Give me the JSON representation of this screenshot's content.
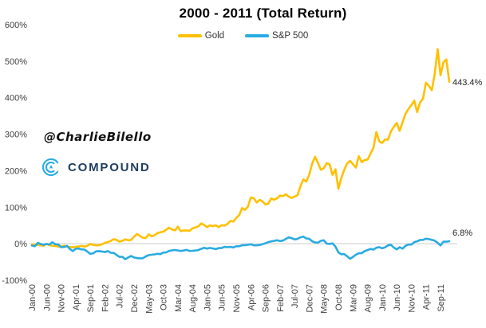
{
  "title": "2000 - 2011 (Total Return)",
  "watermark": "@CharlieBilello",
  "logo": {
    "text": "COMPOUND",
    "icon": "compound-c-arcs-icon"
  },
  "colors": {
    "gold": "#FFC000",
    "sp500": "#29ABE2",
    "axis_text": "#404040",
    "gridline": "#C9C9C9",
    "logo_text": "#1e3c5e",
    "logo_icon": "#29ABE2",
    "title_text": "#000000"
  },
  "chart_data": {
    "type": "line",
    "title": "2000 - 2011 (Total Return)",
    "x_unit": "month",
    "x_start": "Jan-00",
    "x_end": "Dec-11",
    "xtick_month_interval": 5,
    "xticks": [
      "Jan-00",
      "Jun-00",
      "Nov-00",
      "Apr-01",
      "Sep-01",
      "Feb-02",
      "Jul-02",
      "Dec-02",
      "May-03",
      "Oct-03",
      "Mar-04",
      "Aug-04",
      "Jan-05",
      "Jun-05",
      "Nov-05",
      "Apr-06",
      "Sep-06",
      "Feb-07",
      "Jul-07",
      "Dec-07",
      "May-08",
      "Oct-08",
      "Mar-09",
      "Aug-09",
      "Jan-10",
      "Jun-10",
      "Nov-10",
      "Apr-11",
      "Sep-11"
    ],
    "yticks": [
      "600%",
      "500%",
      "400%",
      "300%",
      "200%",
      "100%",
      "0%",
      "-100%"
    ],
    "ylim": [
      -100,
      600
    ],
    "gridlines": "horizontal line at 0% only",
    "legend_position": "top-center",
    "series": [
      {
        "name": "Gold",
        "color": "#FFC000",
        "end_label": "443.4%",
        "values": [
          -2.5,
          -1.8,
          -3.5,
          -4.5,
          -5.5,
          -0.5,
          -4.0,
          -5.5,
          -6.0,
          -8.0,
          -7.5,
          -5.3,
          -8.5,
          -9.0,
          -10.0,
          -8.5,
          -7.5,
          -6.0,
          -8.0,
          -5.5,
          -0.5,
          -3.5,
          -4.5,
          -4.0,
          -1.5,
          2.5,
          4.5,
          7.5,
          12.5,
          10.5,
          5.5,
          8.0,
          12.0,
          9.5,
          10.5,
          19.0,
          27.0,
          21.5,
          16.5,
          15.5,
          25.5,
          20.5,
          23.0,
          29.0,
          31.5,
          33.0,
          38.5,
          44.0,
          39.0,
          36.5,
          46.5,
          34.5,
          36.5,
          36.0,
          35.5,
          42.0,
          44.5,
          47.5,
          55.5,
          51.5,
          45.5,
          50.5,
          48.0,
          50.5,
          45.5,
          51.0,
          49.5,
          54.0,
          62.5,
          60.5,
          71.0,
          78.0,
          97.5,
          92.5,
          101.5,
          126.5,
          125.0,
          113.0,
          120.0,
          116.0,
          107.5,
          109.5,
          124.0,
          120.5,
          124.5,
          132.0,
          130.5,
          135.0,
          129.0,
          125.5,
          129.5,
          133.0,
          157.5,
          176.0,
          170.5,
          188.5,
          219.0,
          238.0,
          221.5,
          202.5,
          207.0,
          220.5,
          217.5,
          188.5,
          204.0,
          150.5,
          180.0,
          202.5,
          220.0,
          227.0,
          218.0,
          208.5,
          240.0,
          223.5,
          229.0,
          230.5,
          247.0,
          262.0,
          306.0,
          280.5,
          276.0,
          285.5,
          285.0,
          308.0,
          320.5,
          331.0,
          309.0,
          333.0,
          355.5,
          369.0,
          379.5,
          392.0,
          360.5,
          387.0,
          397.5,
          441.0,
          432.0,
          420.5,
          464.0,
          533.0,
          461.5,
          497.0,
          505.0,
          443.4
        ]
      },
      {
        "name": "S&P 500",
        "color": "#29ABE2",
        "end_label": "6.8%",
        "values": [
          -5.0,
          -6.8,
          2.3,
          -0.8,
          -2.9,
          -0.5,
          -2.0,
          4.1,
          -1.5,
          -1.9,
          -9.6,
          -9.1,
          -5.9,
          -14.5,
          -20.0,
          -13.8,
          -13.2,
          -15.3,
          -16.1,
          -21.4,
          -27.8,
          -26.4,
          -20.8,
          -20.1,
          -21.3,
          -22.8,
          -19.9,
          -24.8,
          -25.3,
          -30.6,
          -36.0,
          -35.6,
          -42.6,
          -37.5,
          -33.8,
          -37.7,
          -39.3,
          -40.2,
          -39.6,
          -34.7,
          -31.2,
          -30.3,
          -29.1,
          -27.7,
          -28.5,
          -24.4,
          -23.7,
          -19.7,
          -18.3,
          -17.2,
          -18.4,
          -19.7,
          -18.6,
          -17.0,
          -19.8,
          -19.4,
          -18.6,
          -17.3,
          -14.0,
          -11.1,
          -13.3,
          -11.4,
          -13.0,
          -14.7,
          -11.9,
          -11.8,
          -8.6,
          -9.4,
          -8.7,
          -10.2,
          -6.8,
          -6.8,
          -4.3,
          -4.1,
          -2.9,
          -1.6,
          -4.4,
          -4.3,
          -3.7,
          -1.4,
          1.1,
          4.4,
          6.4,
          7.9,
          9.5,
          7.3,
          8.5,
          13.3,
          17.3,
          15.3,
          11.7,
          13.4,
          17.6,
          19.5,
          14.5,
          13.7,
          6.9,
          3.5,
          3.0,
          8.0,
          9.5,
          0.3,
          -0.5,
          0.9,
          -8.1,
          -23.5,
          -29.0,
          -28.2,
          -34.3,
          -41.3,
          -36.1,
          -30.0,
          -26.1,
          -25.9,
          -20.3,
          -17.4,
          -14.4,
          -16.0,
          -11.0,
          -9.3,
          -12.6,
          -9.9,
          -4.5,
          -3.0,
          -10.7,
          -15.4,
          -9.4,
          -13.5,
          -5.8,
          -2.2,
          -2.2,
          4.3,
          6.8,
          10.4,
          10.5,
          13.8,
          12.5,
          10.6,
          8.4,
          2.5,
          -4.6,
          5.8,
          5.5,
          6.8
        ]
      }
    ]
  }
}
